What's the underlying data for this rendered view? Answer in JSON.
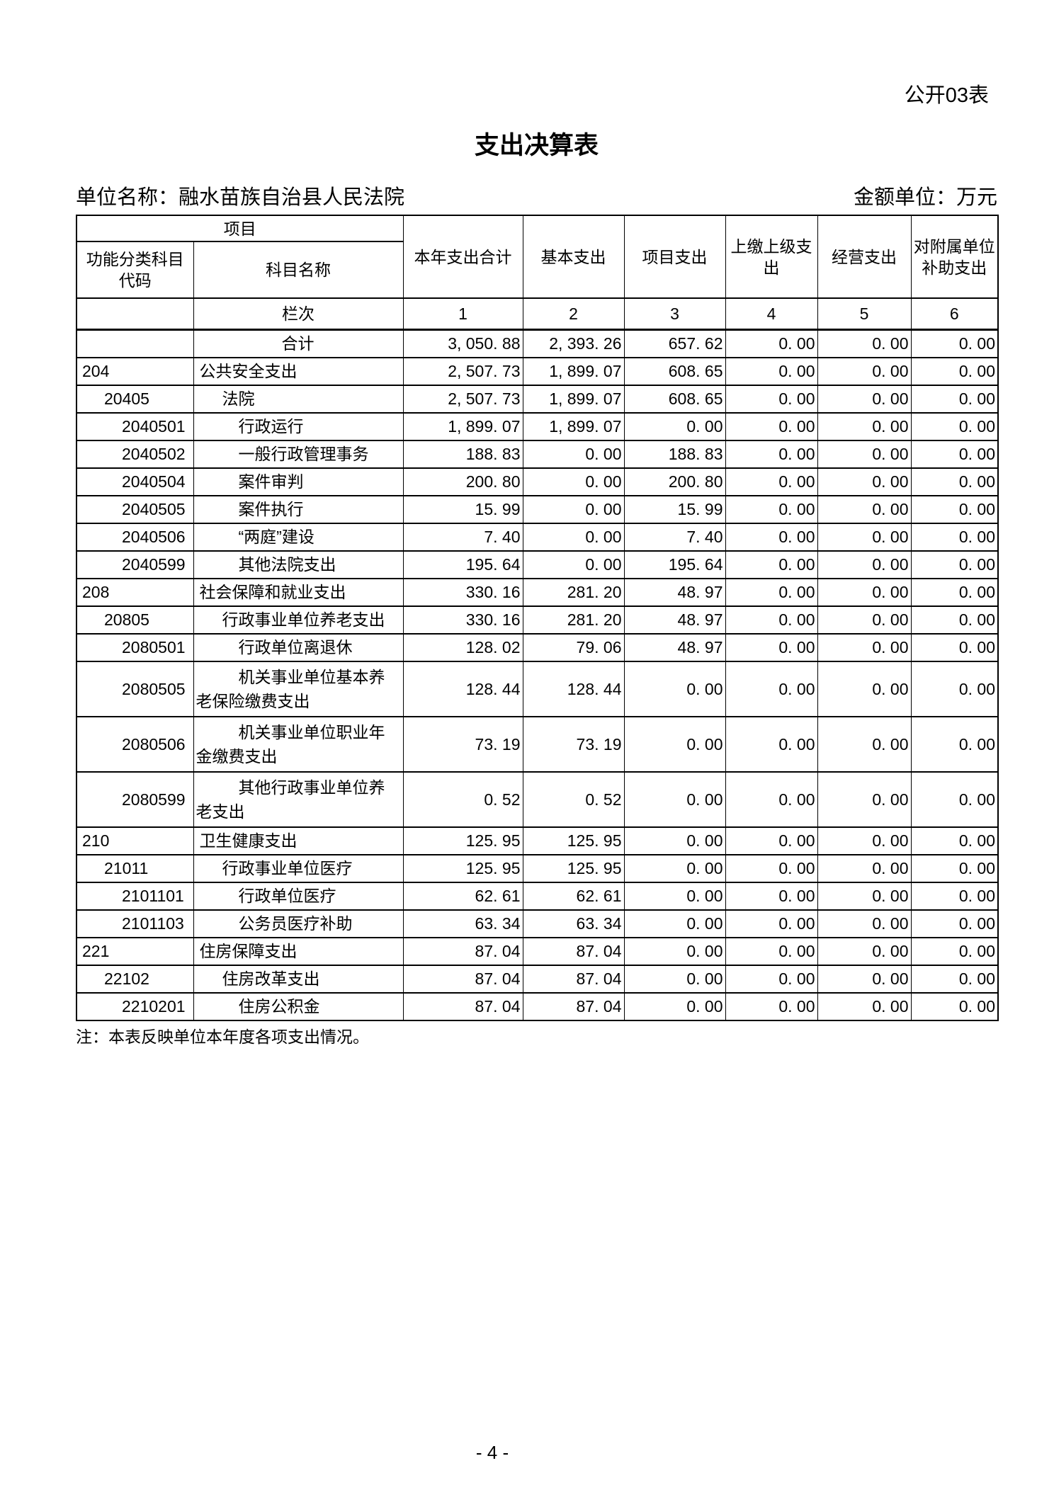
{
  "page": {
    "doc_label": "公开03表",
    "title": "支出决算表",
    "unit_name": "单位名称：融水苗族自治县人民法院",
    "amount_unit": "金额单位：万元",
    "note": "注：本表反映单位本年度各项支出情况。",
    "page_number": "- 4 -"
  },
  "table": {
    "header": {
      "project": "项目",
      "code": "功能分类科目\n代码",
      "subject_name": "科目名称",
      "total": "本年支出合计",
      "basic": "基本支出",
      "project_exp": "项目支出",
      "upper": "上缴上级支\n出",
      "operating": "经营支出",
      "affiliated": "对附属单位\n补助支出",
      "lanci": "栏次",
      "col_indexes": [
        "1",
        "2",
        "3",
        "4",
        "5",
        "6"
      ]
    },
    "rows": [
      {
        "code": "",
        "name": "合计",
        "level": 0,
        "values": [
          "3, 050. 88",
          "2, 393. 26",
          "657. 62",
          "0. 00",
          "0. 00",
          "0. 00"
        ]
      },
      {
        "code": "204",
        "name": "公共安全支出",
        "level": 1,
        "values": [
          "2, 507. 73",
          "1, 899. 07",
          "608. 65",
          "0. 00",
          "0. 00",
          "0. 00"
        ]
      },
      {
        "code": "20405",
        "name": "法院",
        "level": 2,
        "values": [
          "2, 507. 73",
          "1, 899. 07",
          "608. 65",
          "0. 00",
          "0. 00",
          "0. 00"
        ]
      },
      {
        "code": "2040501",
        "name": "行政运行",
        "level": 3,
        "values": [
          "1, 899. 07",
          "1, 899. 07",
          "0. 00",
          "0. 00",
          "0. 00",
          "0. 00"
        ]
      },
      {
        "code": "2040502",
        "name": "一般行政管理事务",
        "level": 3,
        "values": [
          "188. 83",
          "0. 00",
          "188. 83",
          "0. 00",
          "0. 00",
          "0. 00"
        ]
      },
      {
        "code": "2040504",
        "name": "案件审判",
        "level": 3,
        "values": [
          "200. 80",
          "0. 00",
          "200. 80",
          "0. 00",
          "0. 00",
          "0. 00"
        ]
      },
      {
        "code": "2040505",
        "name": "案件执行",
        "level": 3,
        "values": [
          "15. 99",
          "0. 00",
          "15. 99",
          "0. 00",
          "0. 00",
          "0. 00"
        ]
      },
      {
        "code": "2040506",
        "name": "“两庭”建设",
        "level": 3,
        "values": [
          "7. 40",
          "0. 00",
          "7. 40",
          "0. 00",
          "0. 00",
          "0. 00"
        ]
      },
      {
        "code": "2040599",
        "name": "其他法院支出",
        "level": 3,
        "values": [
          "195. 64",
          "0. 00",
          "195. 64",
          "0. 00",
          "0. 00",
          "0. 00"
        ]
      },
      {
        "code": "208",
        "name": "社会保障和就业支出",
        "level": 1,
        "values": [
          "330. 16",
          "281. 20",
          "48. 97",
          "0. 00",
          "0. 00",
          "0. 00"
        ]
      },
      {
        "code": "20805",
        "name": "行政事业单位养老支出",
        "level": 2,
        "values": [
          "330. 16",
          "281. 20",
          "48. 97",
          "0. 00",
          "0. 00",
          "0. 00"
        ]
      },
      {
        "code": "2080501",
        "name": "行政单位离退休",
        "level": 3,
        "values": [
          "128. 02",
          "79. 06",
          "48. 97",
          "0. 00",
          "0. 00",
          "0. 00"
        ]
      },
      {
        "code": "2080505",
        "name": "机关事业单位基本养\n老保险缴费支出",
        "level": 3,
        "values": [
          "128. 44",
          "128. 44",
          "0. 00",
          "0. 00",
          "0. 00",
          "0. 00"
        ]
      },
      {
        "code": "2080506",
        "name": "机关事业单位职业年\n金缴费支出",
        "level": 3,
        "values": [
          "73. 19",
          "73. 19",
          "0. 00",
          "0. 00",
          "0. 00",
          "0. 00"
        ]
      },
      {
        "code": "2080599",
        "name": "其他行政事业单位养\n老支出",
        "level": 3,
        "values": [
          "0. 52",
          "0. 52",
          "0. 00",
          "0. 00",
          "0. 00",
          "0. 00"
        ]
      },
      {
        "code": "210",
        "name": "卫生健康支出",
        "level": 1,
        "values": [
          "125. 95",
          "125. 95",
          "0. 00",
          "0. 00",
          "0. 00",
          "0. 00"
        ]
      },
      {
        "code": "21011",
        "name": "行政事业单位医疗",
        "level": 2,
        "values": [
          "125. 95",
          "125. 95",
          "0. 00",
          "0. 00",
          "0. 00",
          "0. 00"
        ]
      },
      {
        "code": "2101101",
        "name": "行政单位医疗",
        "level": 3,
        "values": [
          "62. 61",
          "62. 61",
          "0. 00",
          "0. 00",
          "0. 00",
          "0. 00"
        ]
      },
      {
        "code": "2101103",
        "name": "公务员医疗补助",
        "level": 3,
        "values": [
          "63. 34",
          "63. 34",
          "0. 00",
          "0. 00",
          "0. 00",
          "0. 00"
        ]
      },
      {
        "code": "221",
        "name": "住房保障支出",
        "level": 1,
        "values": [
          "87. 04",
          "87. 04",
          "0. 00",
          "0. 00",
          "0. 00",
          "0. 00"
        ]
      },
      {
        "code": "22102",
        "name": "住房改革支出",
        "level": 2,
        "values": [
          "87. 04",
          "87. 04",
          "0. 00",
          "0. 00",
          "0. 00",
          "0. 00"
        ]
      },
      {
        "code": "2210201",
        "name": "住房公积金",
        "level": 3,
        "values": [
          "87. 04",
          "87. 04",
          "0. 00",
          "0. 00",
          "0. 00",
          "0. 00"
        ]
      }
    ]
  }
}
